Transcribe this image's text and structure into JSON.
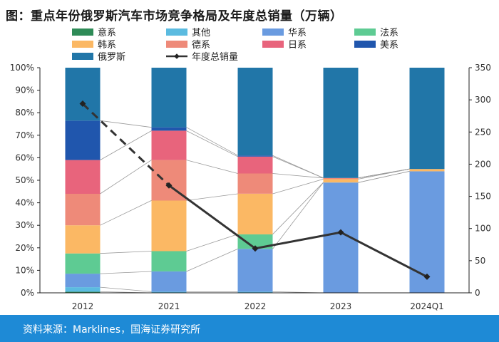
{
  "title": "图：重点年份俄罗斯汽车市场竞争格局及年度总销量（万辆）",
  "footer": "资料来源：Marklines，国海证券研究所",
  "colors": {
    "意系": "#2e8b57",
    "其他": "#5bbbe0",
    "华系": "#6a9be0",
    "法系": "#5ecb93",
    "韩系": "#fbb864",
    "德系": "#ee8a79",
    "日系": "#e8647c",
    "美系": "#2056ad",
    "俄罗斯": "#2176a8",
    "line": "#333333",
    "footer": "#1e8ad6"
  },
  "chart_data": {
    "type": "bar",
    "stacked": true,
    "percent": true,
    "categories": [
      "2012",
      "2021",
      "2022",
      "2023",
      "2024Q1"
    ],
    "series": [
      {
        "name": "意系",
        "values": [
          0.5,
          0,
          0,
          0,
          0
        ]
      },
      {
        "name": "其他",
        "values": [
          2.0,
          0.5,
          0.5,
          0,
          0
        ]
      },
      {
        "name": "华系",
        "values": [
          6.0,
          9.0,
          19.0,
          49.0,
          54.0
        ]
      },
      {
        "name": "法系",
        "values": [
          9.0,
          9.0,
          6.5,
          0,
          0
        ]
      },
      {
        "name": "韩系",
        "values": [
          12.5,
          22.5,
          18.0,
          1.5,
          1.0
        ]
      },
      {
        "name": "德系",
        "values": [
          14.0,
          18.0,
          9.0,
          0.5,
          0
        ]
      },
      {
        "name": "日系",
        "values": [
          15.0,
          13.0,
          7.5,
          0,
          0
        ]
      },
      {
        "name": "美系",
        "values": [
          17.5,
          1.5,
          0.5,
          0,
          0
        ]
      },
      {
        "name": "俄罗斯",
        "values": [
          23.5,
          26.5,
          39.0,
          49.0,
          45.0
        ]
      }
    ],
    "line": {
      "name": "年度总销量",
      "values": [
        294,
        167,
        69,
        94,
        25
      ]
    },
    "y_left": {
      "min": 0,
      "max": 100,
      "step": 10,
      "suffix": "%"
    },
    "y_right": {
      "min": 0,
      "max": 350,
      "step": 50
    },
    "legend_order": [
      "意系",
      "其他",
      "华系",
      "法系",
      "韩系",
      "德系",
      "日系",
      "美系",
      "俄罗斯",
      "年度总销量"
    ],
    "legend_position": "top",
    "connector_lines": true
  }
}
